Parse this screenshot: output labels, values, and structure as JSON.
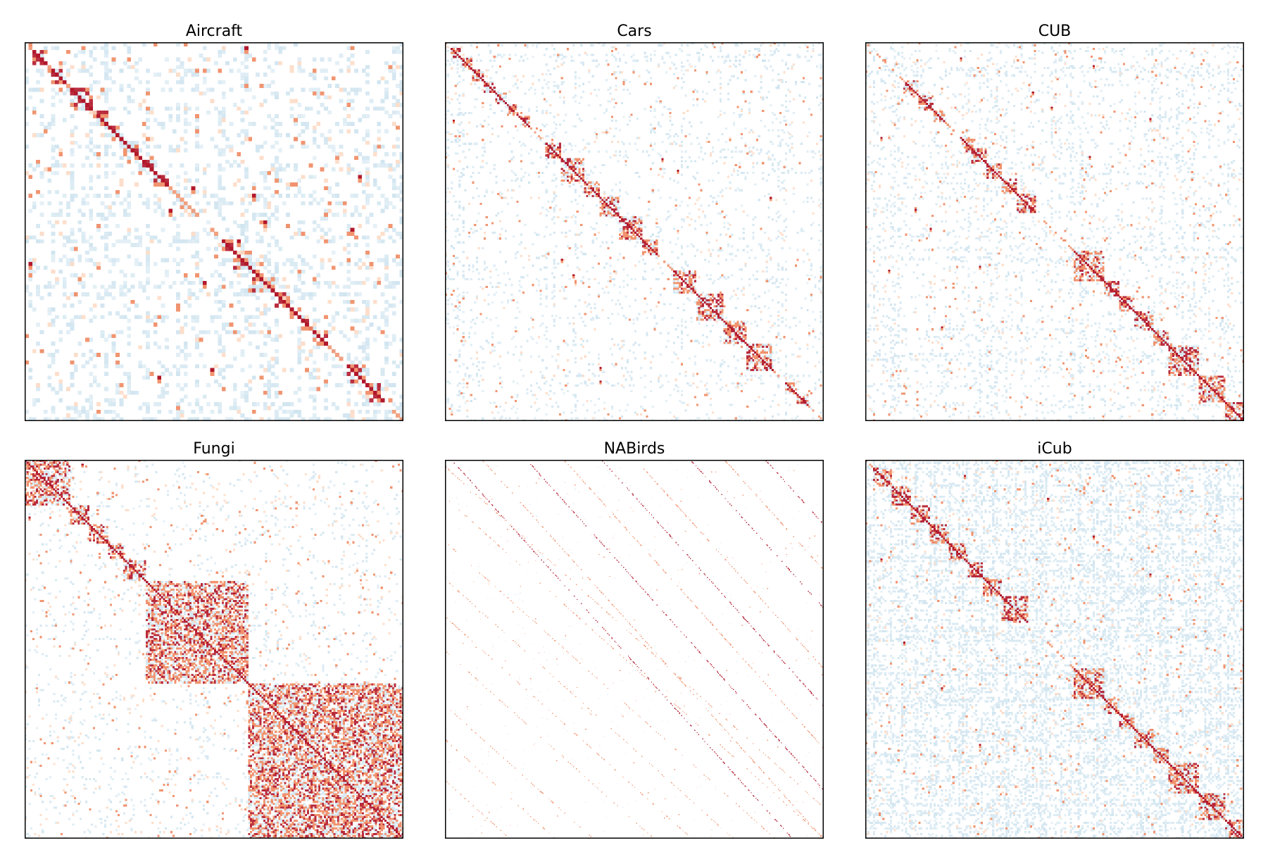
{
  "chart_data": [
    {
      "type": "heatmap",
      "title": "Aircraft",
      "xlabel": "",
      "ylabel": "",
      "n_classes": 100,
      "colormap": "RdBu_r",
      "colors": {
        "strong": "#b2182b",
        "medium": "#ef8a62",
        "weak": "#fddbc7",
        "negative": "#d1e5f0",
        "background": "#ffffff"
      },
      "diagonal_blocks": [
        [
          2,
          6
        ],
        [
          7,
          11
        ],
        [
          12,
          18
        ],
        [
          18,
          22
        ],
        [
          22,
          26
        ],
        [
          26,
          30
        ],
        [
          30,
          34
        ],
        [
          34,
          38
        ],
        [
          52,
          55
        ],
        [
          55,
          60
        ],
        [
          60,
          66
        ],
        [
          66,
          70
        ],
        [
          70,
          73
        ],
        [
          73,
          76
        ],
        [
          76,
          80
        ],
        [
          85,
          90
        ],
        [
          90,
          95
        ]
      ],
      "hotspots": [
        [
          1,
          58
        ],
        [
          58,
          1
        ],
        [
          44,
          38
        ],
        [
          38,
          44
        ],
        [
          47,
          63
        ],
        [
          63,
          47
        ],
        [
          88,
          35
        ],
        [
          35,
          88
        ],
        [
          86,
          49
        ],
        [
          49,
          86
        ],
        [
          52,
          56
        ],
        [
          40,
          60
        ]
      ],
      "density": 0.1,
      "negative_density": 0.55
    },
    {
      "type": "heatmap",
      "title": "Cars",
      "xlabel": "",
      "ylabel": "",
      "n_classes": 196,
      "colormap": "RdBu_r",
      "colors": {
        "strong": "#b2182b",
        "medium": "#ef8a62",
        "weak": "#fddbc7",
        "negative": "#d1e5f0",
        "background": "#ffffff"
      },
      "diagonal_blocks": [
        [
          3,
          8
        ],
        [
          8,
          14
        ],
        [
          14,
          20
        ],
        [
          20,
          26
        ],
        [
          26,
          32
        ],
        [
          32,
          38
        ],
        [
          38,
          44
        ],
        [
          52,
          60
        ],
        [
          60,
          72
        ],
        [
          72,
          80
        ],
        [
          80,
          90
        ],
        [
          90,
          102
        ],
        [
          102,
          110
        ],
        [
          118,
          130
        ],
        [
          130,
          144
        ],
        [
          144,
          156
        ],
        [
          156,
          170
        ],
        [
          176,
          182
        ],
        [
          182,
          188
        ]
      ],
      "hotspots": [
        [
          66,
          120
        ],
        [
          120,
          66
        ],
        [
          80,
          168
        ],
        [
          168,
          80
        ],
        [
          112,
          60
        ],
        [
          60,
          112
        ],
        [
          175,
          80
        ],
        [
          40,
          4
        ]
      ],
      "density": 0.04,
      "negative_density": 0.28
    },
    {
      "type": "heatmap",
      "title": "CUB",
      "xlabel": "",
      "ylabel": "",
      "n_classes": 200,
      "colormap": "RdBu_r",
      "colors": {
        "strong": "#b2182b",
        "medium": "#ef8a62",
        "weak": "#fddbc7",
        "negative": "#d1e5f0",
        "background": "#ffffff"
      },
      "diagonal_blocks": [
        [
          20,
          28
        ],
        [
          28,
          36
        ],
        [
          36,
          42
        ],
        [
          50,
          58
        ],
        [
          56,
          64
        ],
        [
          64,
          72
        ],
        [
          72,
          80
        ],
        [
          80,
          90
        ],
        [
          110,
          126
        ],
        [
          126,
          134
        ],
        [
          134,
          142
        ],
        [
          142,
          152
        ],
        [
          152,
          160
        ],
        [
          160,
          176
        ],
        [
          176,
          190
        ],
        [
          190,
          200
        ]
      ],
      "hotspots": [
        [
          8,
          50
        ],
        [
          50,
          8
        ],
        [
          12,
          120
        ],
        [
          120,
          12
        ],
        [
          34,
          98
        ],
        [
          98,
          34
        ],
        [
          40,
          150
        ],
        [
          150,
          40
        ],
        [
          60,
          118
        ],
        [
          118,
          60
        ],
        [
          26,
          88
        ],
        [
          88,
          26
        ]
      ],
      "density": 0.05,
      "negative_density": 0.32
    },
    {
      "type": "heatmap",
      "title": "Fungi",
      "xlabel": "",
      "ylabel": "",
      "n_classes": 200,
      "colormap": "RdBu_r",
      "colors": {
        "strong": "#b2182b",
        "medium": "#ef8a62",
        "weak": "#fddbc7",
        "negative": "#d1e5f0",
        "background": "#ffffff"
      },
      "diagonal_blocks": [
        [
          0,
          24
        ],
        [
          24,
          34
        ],
        [
          34,
          44
        ],
        [
          44,
          52
        ],
        [
          52,
          64
        ],
        [
          64,
          118
        ],
        [
          118,
          200
        ]
      ],
      "hotspots": [
        [
          2,
          30
        ],
        [
          30,
          2
        ],
        [
          70,
          110
        ],
        [
          110,
          70
        ]
      ],
      "density": 0.06,
      "negative_density": 0.18
    },
    {
      "type": "heatmap",
      "title": "NABirds",
      "xlabel": "",
      "ylabel": "",
      "n_classes": 555,
      "colormap": "RdBu_r",
      "colors": {
        "strong": "#b2182b",
        "medium": "#ef8a62",
        "weak": "#fddbc7",
        "negative": "#d1e5f0",
        "background": "#ffffff"
      },
      "diagonal_blocks": [],
      "off_diagonal_bands": [
        [
          0,
          10
        ],
        [
          0,
          55
        ],
        [
          0,
          120
        ],
        [
          0,
          175
        ],
        [
          0,
          230
        ],
        [
          0,
          280
        ],
        [
          0,
          360
        ],
        [
          0,
          410
        ],
        [
          0,
          470
        ]
      ],
      "hotspots": [],
      "density": 0.015,
      "negative_density": 0.05
    },
    {
      "type": "heatmap",
      "title": "iCub",
      "xlabel": "",
      "ylabel": "",
      "n_classes": 200,
      "colormap": "RdBu_r",
      "colors": {
        "strong": "#b2182b",
        "medium": "#ef8a62",
        "weak": "#fddbc7",
        "negative": "#d1e5f0",
        "background": "#ffffff"
      },
      "diagonal_blocks": [
        [
          4,
          14
        ],
        [
          14,
          24
        ],
        [
          24,
          34
        ],
        [
          34,
          44
        ],
        [
          44,
          54
        ],
        [
          54,
          62
        ],
        [
          62,
          72
        ],
        [
          72,
          86
        ],
        [
          110,
          126
        ],
        [
          126,
          134
        ],
        [
          134,
          142
        ],
        [
          142,
          152
        ],
        [
          152,
          160
        ],
        [
          160,
          176
        ],
        [
          176,
          190
        ],
        [
          190,
          200
        ]
      ],
      "hotspots": [
        [
          20,
          96
        ],
        [
          96,
          20
        ],
        [
          8,
          52
        ],
        [
          52,
          8
        ],
        [
          40,
          120
        ],
        [
          120,
          40
        ],
        [
          60,
          150
        ],
        [
          150,
          60
        ]
      ],
      "density": 0.06,
      "negative_density": 0.7
    }
  ]
}
